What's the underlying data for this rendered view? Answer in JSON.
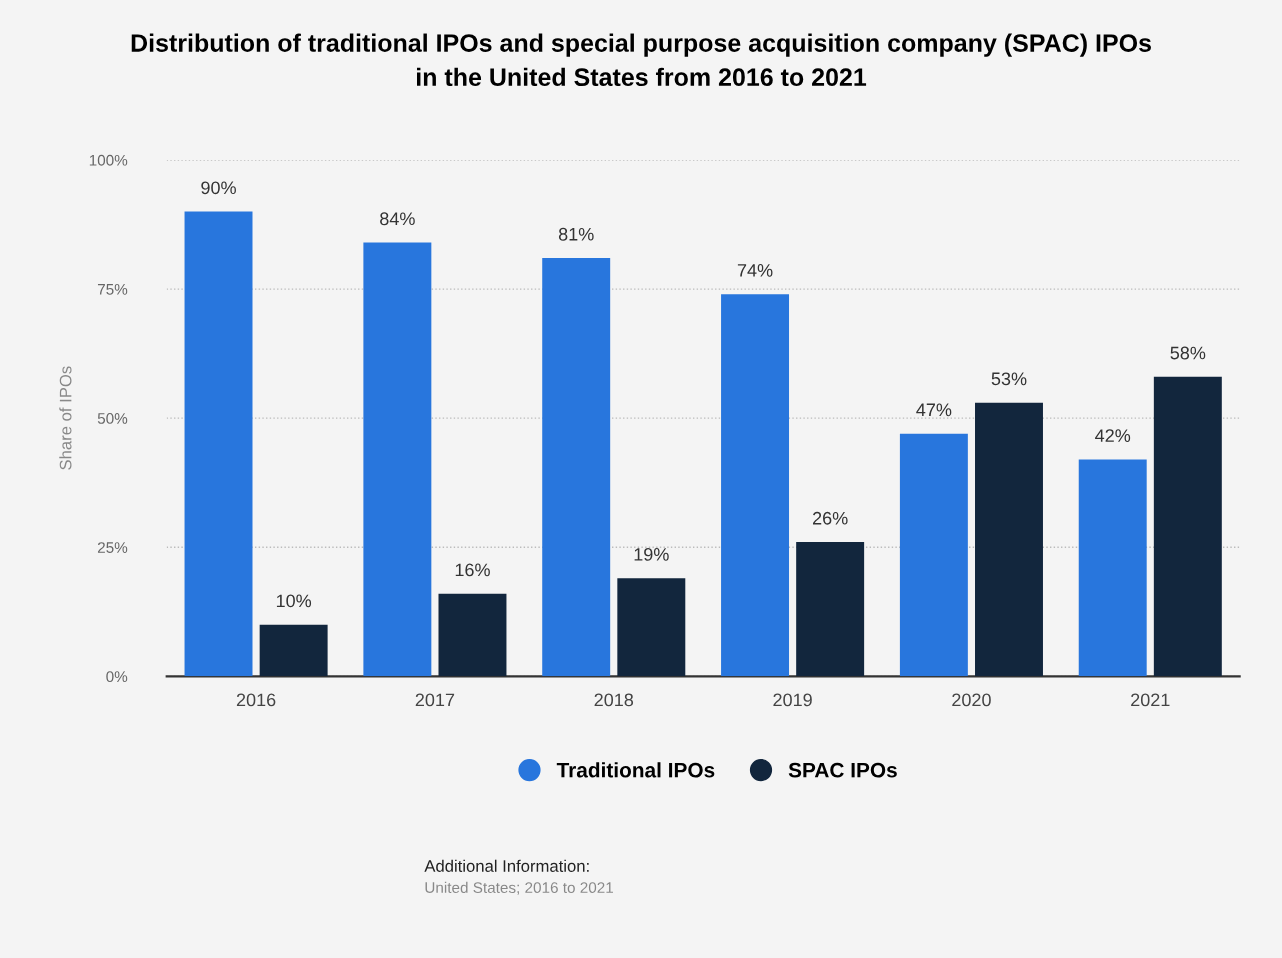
{
  "chart_data": {
    "type": "bar",
    "title": "Distribution of traditional IPOs and special purpose acquisition company (SPAC) IPOs\nin the United States from 2016 to 2021",
    "ylabel": "Share of IPOs",
    "categories": [
      "2016",
      "2017",
      "2018",
      "2019",
      "2020",
      "2021"
    ],
    "series": [
      {
        "name": "Traditional IPOs",
        "color": "#2876dd",
        "values": [
          90,
          84,
          81,
          74,
          47,
          42
        ],
        "value_labels": [
          "90%",
          "84%",
          "81%",
          "74%",
          "47%",
          "42%"
        ]
      },
      {
        "name": "SPAC IPOs",
        "color": "#12263d",
        "values": [
          10,
          16,
          19,
          26,
          53,
          58
        ],
        "value_labels": [
          "10%",
          "16%",
          "19%",
          "26%",
          "53%",
          "58%"
        ]
      }
    ],
    "ylim": [
      0,
      100
    ],
    "yticks": [
      {
        "value": 0,
        "label": "0%"
      },
      {
        "value": 25,
        "label": "25%"
      },
      {
        "value": 50,
        "label": "50%"
      },
      {
        "value": 75,
        "label": "75%"
      },
      {
        "value": 100,
        "label": "100%"
      }
    ],
    "grid": "y",
    "legend": "bottom",
    "annotations": [
      "Additional Information:",
      "United States; 2016 to 2021"
    ]
  }
}
